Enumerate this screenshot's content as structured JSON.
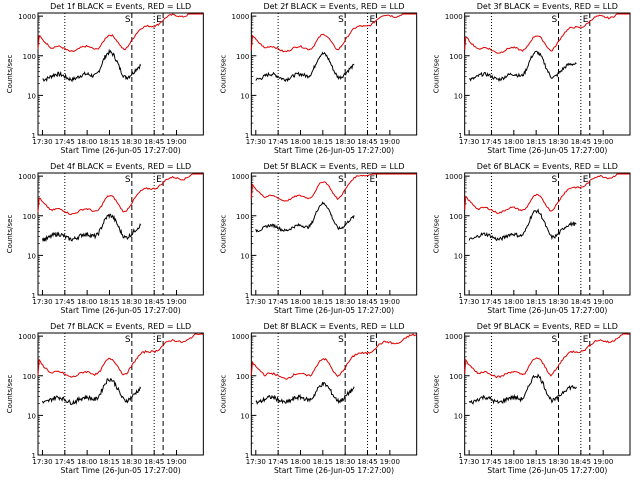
{
  "figure": {
    "columns": 3,
    "rows": 3,
    "shared": {
      "xlabel": "Start Time (26-Jun-05 17:27:00)",
      "ylabel": "Counts/sec",
      "yticks": [
        "1",
        "10",
        "100",
        "1000"
      ],
      "ylim": [
        1,
        1200
      ],
      "legend_black": "BLACK = Events",
      "legend_red": "RED = LLD",
      "marker_start": "S",
      "marker_end": "E",
      "series_colors": {
        "events": "#000000",
        "lld": "#e00000"
      }
    }
  },
  "chart_data": [
    {
      "type": "line",
      "title": "Det 1f BLACK = Events, RED = LLD",
      "xticks": [
        "17:30",
        "17:45",
        "18:00",
        "18:15",
        "18:30",
        "18:45",
        "19:00"
      ],
      "xlim": [
        17.45,
        19.3
      ],
      "markers": {
        "dotted": [
          17.75,
          18.75
        ],
        "dashed": [
          18.5,
          18.85
        ]
      },
      "series": [
        {
          "name": "Events",
          "color": "#000000",
          "peak": 120,
          "base": 30,
          "start": 17.5,
          "end": 18.6,
          "noise": 0.12
        },
        {
          "name": "LLD",
          "color": "#e00000",
          "peak": 320,
          "base": 150,
          "start": 17.45,
          "end": 19.3,
          "noise": 0.05
        }
      ]
    },
    {
      "type": "line",
      "title": "Det 2f BLACK = Events, RED = LLD",
      "xticks": [
        "17:30",
        "17:45",
        "18:00",
        "18:15",
        "18:30",
        "18:45",
        "19:00"
      ],
      "xlim": [
        17.45,
        19.3
      ],
      "markers": {
        "dotted": [
          17.75,
          18.75
        ],
        "dashed": [
          18.5,
          18.85
        ]
      },
      "series": [
        {
          "name": "Events",
          "color": "#000000",
          "peak": 110,
          "base": 30,
          "start": 17.5,
          "end": 18.6,
          "noise": 0.1
        },
        {
          "name": "LLD",
          "color": "#e00000",
          "peak": 330,
          "base": 150,
          "start": 17.45,
          "end": 19.3,
          "noise": 0.05
        }
      ]
    },
    {
      "type": "line",
      "title": "Det 3f BLACK = Events, RED = LLD",
      "xticks": [
        "17:30",
        "17:45",
        "18:00",
        "18:15",
        "18:30",
        "18:45",
        "19:00"
      ],
      "xlim": [
        17.45,
        19.3
      ],
      "markers": {
        "dotted": [
          17.75,
          18.75
        ],
        "dashed": [
          18.5,
          18.85
        ]
      },
      "series": [
        {
          "name": "Events",
          "color": "#000000",
          "peak": 120,
          "base": 30,
          "start": 17.5,
          "end": 18.7,
          "noise": 0.1
        },
        {
          "name": "LLD",
          "color": "#e00000",
          "peak": 310,
          "base": 140,
          "start": 17.45,
          "end": 19.3,
          "noise": 0.05
        }
      ]
    },
    {
      "type": "line",
      "title": "Det 4f BLACK = Events, RED = LLD",
      "xticks": [
        "17:30",
        "17:45",
        "18:00",
        "18:15",
        "18:30",
        "18:45",
        "19:00"
      ],
      "xlim": [
        17.45,
        19.3
      ],
      "markers": {
        "dotted": [
          17.75,
          18.75
        ],
        "dashed": [
          18.5,
          18.85
        ]
      },
      "series": [
        {
          "name": "Events",
          "color": "#000000",
          "peak": 100,
          "base": 30,
          "start": 17.5,
          "end": 18.6,
          "noise": 0.12
        },
        {
          "name": "LLD",
          "color": "#e00000",
          "peak": 310,
          "base": 130,
          "start": 17.45,
          "end": 19.3,
          "noise": 0.05
        }
      ]
    },
    {
      "type": "line",
      "title": "Det 5f BLACK = Events, RED = LLD",
      "xticks": [
        "17:30",
        "17:45",
        "18:00",
        "18:15",
        "18:30",
        "18:45",
        "19:00"
      ],
      "xlim": [
        17.45,
        19.3
      ],
      "markers": {
        "dotted": [
          17.75,
          18.75
        ],
        "dashed": [
          18.5,
          18.85
        ]
      },
      "series": [
        {
          "name": "Events",
          "color": "#000000",
          "peak": 200,
          "base": 50,
          "start": 17.5,
          "end": 18.6,
          "noise": 0.08
        },
        {
          "name": "LLD",
          "color": "#e00000",
          "peak": 700,
          "base": 280,
          "start": 17.45,
          "end": 19.3,
          "noise": 0.04
        }
      ]
    },
    {
      "type": "line",
      "title": "Det 6f BLACK = Events, RED = LLD",
      "xticks": [
        "17:30",
        "17:45",
        "18:00",
        "18:15",
        "18:30",
        "18:45",
        "19:00"
      ],
      "xlim": [
        17.45,
        19.3
      ],
      "markers": {
        "dotted": [
          17.75,
          18.75
        ],
        "dashed": [
          18.5,
          18.85
        ]
      },
      "series": [
        {
          "name": "Events",
          "color": "#000000",
          "peak": 130,
          "base": 30,
          "start": 17.5,
          "end": 18.7,
          "noise": 0.1
        },
        {
          "name": "LLD",
          "color": "#e00000",
          "peak": 320,
          "base": 140,
          "start": 17.45,
          "end": 19.3,
          "noise": 0.05
        }
      ]
    },
    {
      "type": "line",
      "title": "Det 7f BLACK = Events, RED = LLD",
      "xticks": [
        "17:30",
        "17:45",
        "18:00",
        "18:15",
        "18:30",
        "18:45",
        "19:00"
      ],
      "xlim": [
        17.45,
        19.3
      ],
      "markers": {
        "dotted": [
          17.75,
          18.75
        ],
        "dashed": [
          18.5,
          18.85
        ]
      },
      "series": [
        {
          "name": "Events",
          "color": "#000000",
          "peak": 80,
          "base": 25,
          "start": 17.5,
          "end": 18.6,
          "noise": 0.12
        },
        {
          "name": "LLD",
          "color": "#e00000",
          "peak": 260,
          "base": 110,
          "start": 17.45,
          "end": 19.3,
          "noise": 0.06
        }
      ]
    },
    {
      "type": "line",
      "title": "Det 8f BLACK = Events, RED = LLD",
      "xticks": [
        "17:30",
        "17:45",
        "18:00",
        "18:15",
        "18:30",
        "18:45",
        "19:00"
      ],
      "xlim": [
        17.45,
        19.3
      ],
      "markers": {
        "dotted": [
          17.75,
          18.75
        ],
        "dashed": [
          18.5,
          18.85
        ]
      },
      "series": [
        {
          "name": "Events",
          "color": "#000000",
          "peak": 60,
          "base": 25,
          "start": 17.5,
          "end": 18.6,
          "noise": 0.12
        },
        {
          "name": "LLD",
          "color": "#e00000",
          "peak": 260,
          "base": 100,
          "start": 17.45,
          "end": 19.3,
          "noise": 0.06
        }
      ]
    },
    {
      "type": "line",
      "title": "Det 9f BLACK = Events, RED = LLD",
      "xticks": [
        "17:30",
        "17:45",
        "18:00",
        "18:15",
        "18:30",
        "18:45",
        "19:00"
      ],
      "xlim": [
        17.45,
        19.3
      ],
      "markers": {
        "dotted": [
          17.75,
          18.75
        ],
        "dashed": [
          18.5,
          18.85
        ]
      },
      "series": [
        {
          "name": "Events",
          "color": "#000000",
          "peak": 100,
          "base": 25,
          "start": 17.5,
          "end": 18.7,
          "noise": 0.12
        },
        {
          "name": "LLD",
          "color": "#e00000",
          "peak": 270,
          "base": 110,
          "start": 17.45,
          "end": 19.3,
          "noise": 0.06
        }
      ]
    }
  ]
}
